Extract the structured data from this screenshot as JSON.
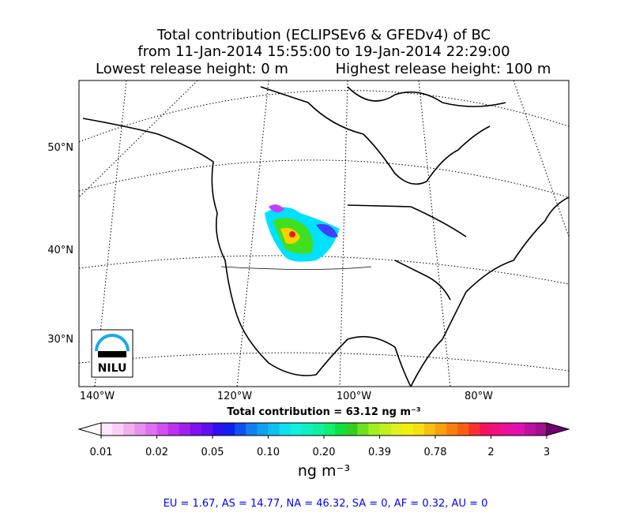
{
  "title": {
    "line1": "Total contribution (ECLIPSEv6 & GFEDv4) of BC",
    "line2": "from 11-Jan-2014 15:55:00 to 19-Jan-2014 22:29:00",
    "line3_left": "Lowest release height: 0 m",
    "line3_right": "Highest release height: 100 m"
  },
  "map": {
    "lat_labels": [
      "50°N",
      "40°N",
      "30°N"
    ],
    "lon_labels": [
      "140°W",
      "120°W",
      "100°W",
      "80°W"
    ],
    "logo": "NILU"
  },
  "total_label": "Total contribution = 63.12 ng m⁻³",
  "colorbar": {
    "tick_labels": [
      "0.01",
      "0.02",
      "0.05",
      "0.10",
      "0.20",
      "0.39",
      "0.78",
      "2",
      "3"
    ],
    "unit": "ng m⁻³"
  },
  "footer": "EU = 1.67,  AS = 14.77,  NA = 46.32,  SA = 0,  AF = 0.32,  AU = 0"
}
